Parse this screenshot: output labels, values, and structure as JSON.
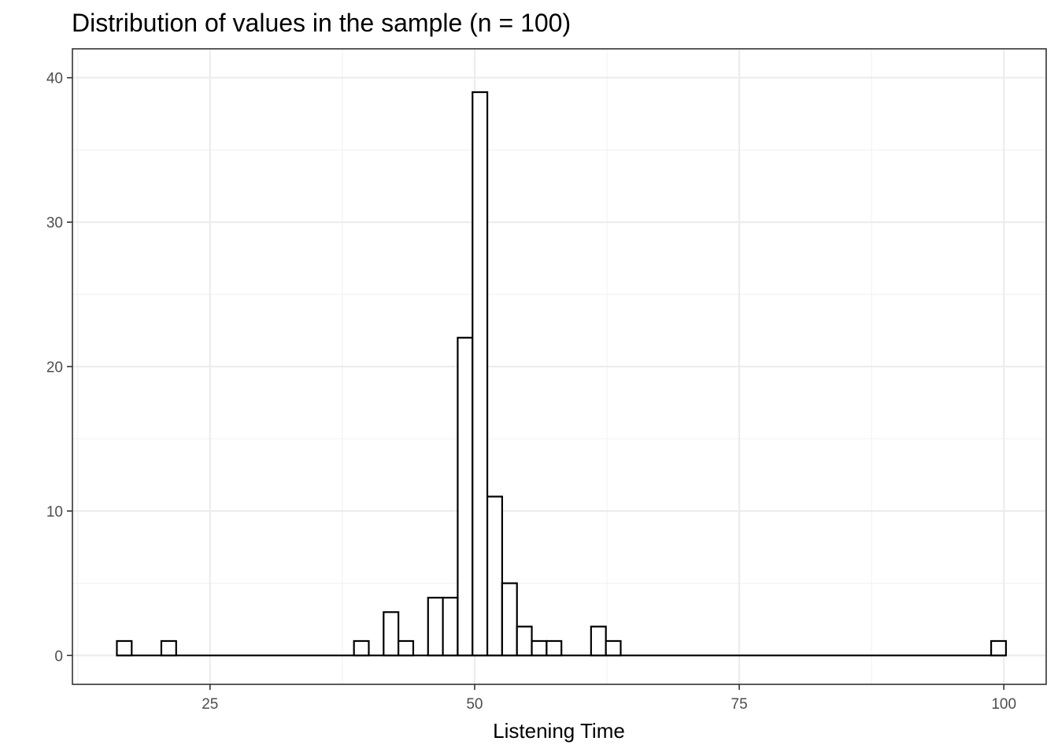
{
  "chart_data": {
    "type": "bar",
    "subtype": "histogram",
    "title": "Distribution of values in the sample (n = 100)",
    "xlabel": "Listening Time",
    "ylabel": "",
    "xlim": [
      12,
      104
    ],
    "ylim": [
      -2,
      42
    ],
    "x_ticks": [
      25,
      50,
      75,
      100
    ],
    "x_tick_labels": [
      "25",
      "50",
      "75",
      "100"
    ],
    "y_ticks": [
      0,
      10,
      20,
      30,
      40
    ],
    "y_tick_labels": [
      "0",
      "10",
      "20",
      "30",
      "40"
    ],
    "grid": true,
    "bin_width": 1.4,
    "bins": [
      {
        "x0": 16.2,
        "x1": 17.6,
        "count": 1
      },
      {
        "x0": 20.4,
        "x1": 21.8,
        "count": 1
      },
      {
        "x0": 38.6,
        "x1": 40.0,
        "count": 1
      },
      {
        "x0": 41.4,
        "x1": 42.8,
        "count": 3
      },
      {
        "x0": 42.8,
        "x1": 44.2,
        "count": 1
      },
      {
        "x0": 45.6,
        "x1": 47.0,
        "count": 4
      },
      {
        "x0": 47.0,
        "x1": 48.4,
        "count": 4
      },
      {
        "x0": 48.4,
        "x1": 49.8,
        "count": 22
      },
      {
        "x0": 49.8,
        "x1": 51.2,
        "count": 39
      },
      {
        "x0": 51.2,
        "x1": 52.6,
        "count": 11
      },
      {
        "x0": 52.6,
        "x1": 54.0,
        "count": 5
      },
      {
        "x0": 54.0,
        "x1": 55.4,
        "count": 2
      },
      {
        "x0": 55.4,
        "x1": 56.8,
        "count": 1
      },
      {
        "x0": 56.8,
        "x1": 58.2,
        "count": 1
      },
      {
        "x0": 61.0,
        "x1": 62.4,
        "count": 2
      },
      {
        "x0": 62.4,
        "x1": 63.8,
        "count": 1
      },
      {
        "x0": 98.8,
        "x1": 100.2,
        "count": 1
      }
    ],
    "baseline_range": [
      16.2,
      100.2
    ]
  }
}
